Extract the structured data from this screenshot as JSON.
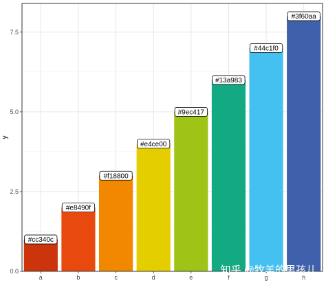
{
  "chart_data": {
    "type": "bar",
    "categories": [
      "a",
      "b",
      "c",
      "d",
      "e",
      "f",
      "g",
      "h"
    ],
    "values": [
      1,
      2,
      3,
      4,
      5,
      6,
      7,
      8
    ],
    "labels": [
      "#cc340c",
      "#e8490f",
      "#f18800",
      "#e4ce00",
      "#9ec417",
      "#13a983",
      "#44c1f0",
      "#3f60aa"
    ],
    "colors": [
      "#cc340c",
      "#e8490f",
      "#f18800",
      "#e4ce00",
      "#9ec417",
      "#13a983",
      "#44c1f0",
      "#3f60aa"
    ],
    "xlabel": "",
    "ylabel": "y",
    "ylim": [
      0,
      8.4
    ],
    "yticks": [
      0.0,
      2.5,
      5.0,
      7.5
    ],
    "ytick_labels": [
      "0.0",
      "2.5",
      "5.0",
      "7.5"
    ],
    "grid": true,
    "panel_border": true
  },
  "watermark": "知乎 @牧羊的男孩儿"
}
